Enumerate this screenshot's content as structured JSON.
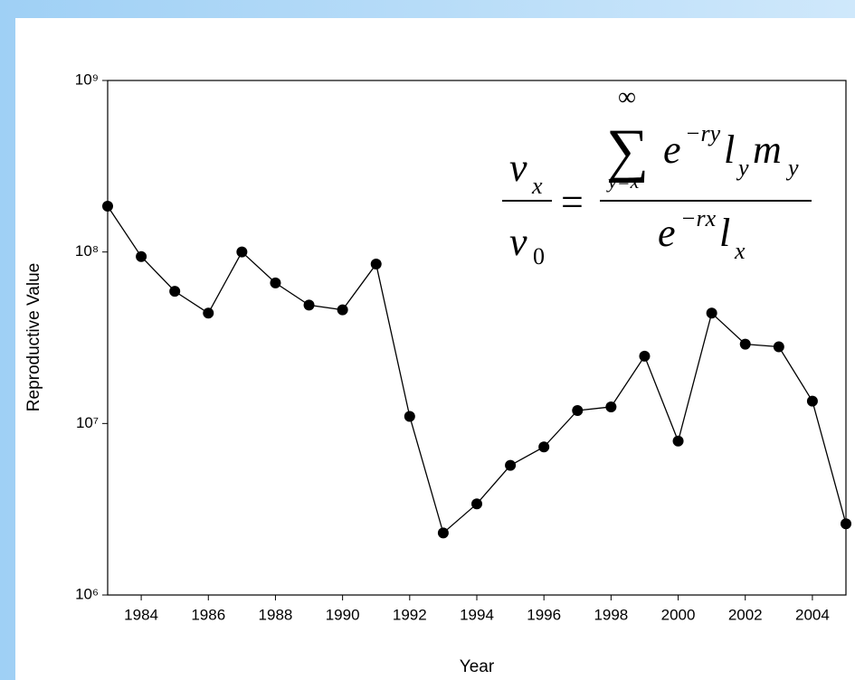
{
  "chart_data": {
    "type": "line",
    "x_label": "Year",
    "y_label": "Reproductive Value",
    "x": [
      1983,
      1984,
      1985,
      1986,
      1987,
      1988,
      1989,
      1990,
      1991,
      1992,
      1993,
      1994,
      1995,
      1996,
      1997,
      1998,
      1999,
      2000,
      2001,
      2002,
      2003,
      2004,
      2005
    ],
    "series": [
      {
        "name": "Reproductive Value",
        "color": "#000000",
        "values": [
          185000000,
          94000000,
          59000000,
          44000000,
          100000000,
          66000000,
          49000000,
          46000000,
          85000000,
          11000000,
          2300000,
          3400000,
          5700000,
          7300000,
          11900000,
          12500000,
          24700000,
          7900000,
          44000000,
          29000000,
          28000000,
          13500000,
          2600000
        ]
      }
    ],
    "xlim": [
      1983,
      2005
    ],
    "xticks": [
      1984,
      1986,
      1988,
      1990,
      1992,
      1994,
      1996,
      1998,
      2000,
      2002,
      2004
    ],
    "ylim": [
      1000000,
      1000000000
    ],
    "log_y": true,
    "yticks": [
      {
        "value": 1000000,
        "label": "10⁶"
      },
      {
        "value": 10000000,
        "label": "10⁷"
      },
      {
        "value": 100000000,
        "label": "10⁸"
      },
      {
        "value": 1000000000,
        "label": "10⁹"
      }
    ],
    "formula_tokens": [
      "v",
      "x",
      "v",
      "0",
      "=",
      "∑",
      "∞",
      "y=x",
      "e",
      "−ry",
      "l",
      "y",
      "m",
      "y",
      "e",
      "−rx",
      "l",
      "x"
    ]
  }
}
